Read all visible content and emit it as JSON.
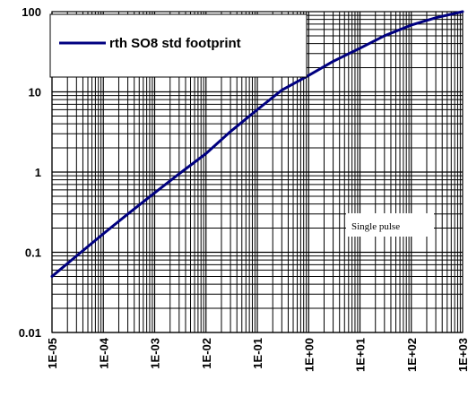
{
  "chart_data": {
    "type": "line",
    "title": "",
    "xlabel": "",
    "ylabel": "",
    "x_scale": "log",
    "y_scale": "log",
    "xlim": [
      1e-05,
      1000
    ],
    "ylim": [
      0.01,
      100
    ],
    "x_ticks": [
      "1E-05",
      "1E-04",
      "1E-03",
      "1E-02",
      "1E-01",
      "1E+00",
      "1E+01",
      "1E+02",
      "1E+03"
    ],
    "y_ticks": [
      "0.01",
      "0.1",
      "1",
      "10",
      "100"
    ],
    "grid": true,
    "legend_position": "top-left",
    "annotation": "Single pulse",
    "series": [
      {
        "name": "rth SO8 std footprint",
        "color": "#000080",
        "x": [
          1e-05,
          3e-05,
          0.0001,
          0.0003,
          0.001,
          0.003,
          0.01,
          0.03,
          0.1,
          0.3,
          1,
          3,
          10,
          30,
          100,
          300,
          1000
        ],
        "y": [
          0.05,
          0.09,
          0.17,
          0.3,
          0.55,
          0.95,
          1.7,
          3.2,
          6.0,
          10.5,
          16,
          24,
          35,
          50,
          68,
          84,
          100
        ]
      }
    ]
  }
}
